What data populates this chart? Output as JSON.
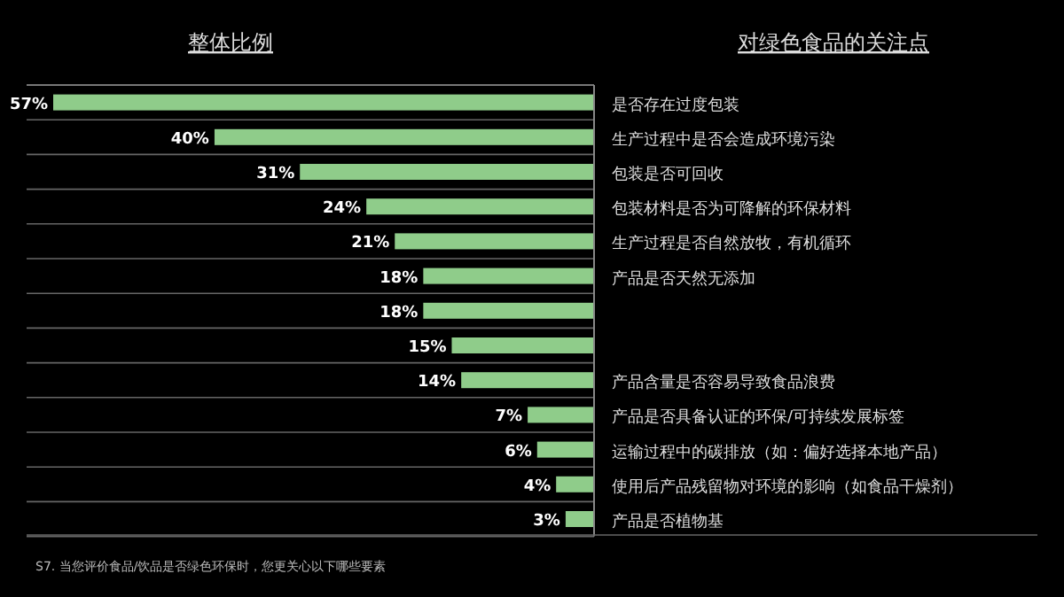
{
  "chart_data": {
    "type": "bar",
    "orientation": "horizontal",
    "title": "整体比例",
    "subtitle": "对绿色食品的关注点",
    "categories": [
      "是否存在过度包装",
      "生产过程中是否会造成环境污染",
      "包装是否可回收",
      "包装材料是否为可降解的环保材料",
      "生产过程是否自然放牧，有机循环",
      "产品是否天然无添加",
      null,
      null,
      "产品含量是否容易导致食品浪费",
      "产品是否具备认证的环保/可持续发展标签",
      "运输过程中的碳排放（如：偏好选择本地产品）",
      "使用后产品残留物对环境的影响（如食品干燥剂）",
      "产品是否植物基"
    ],
    "values": [
      57,
      40,
      31,
      24,
      21,
      18,
      18,
      15,
      14,
      7,
      6,
      4,
      3
    ],
    "value_labels": [
      "57%",
      "40%",
      "31%",
      "24%",
      "21%",
      "18%",
      "18%",
      "15%",
      "14%",
      "7%",
      "6%",
      "4%",
      "3%"
    ],
    "color": "#8fcc8a",
    "annotations": [
      "S7. 当您评价食品/饮品是否绿色环保时，您更关心以下哪些要素"
    ]
  }
}
